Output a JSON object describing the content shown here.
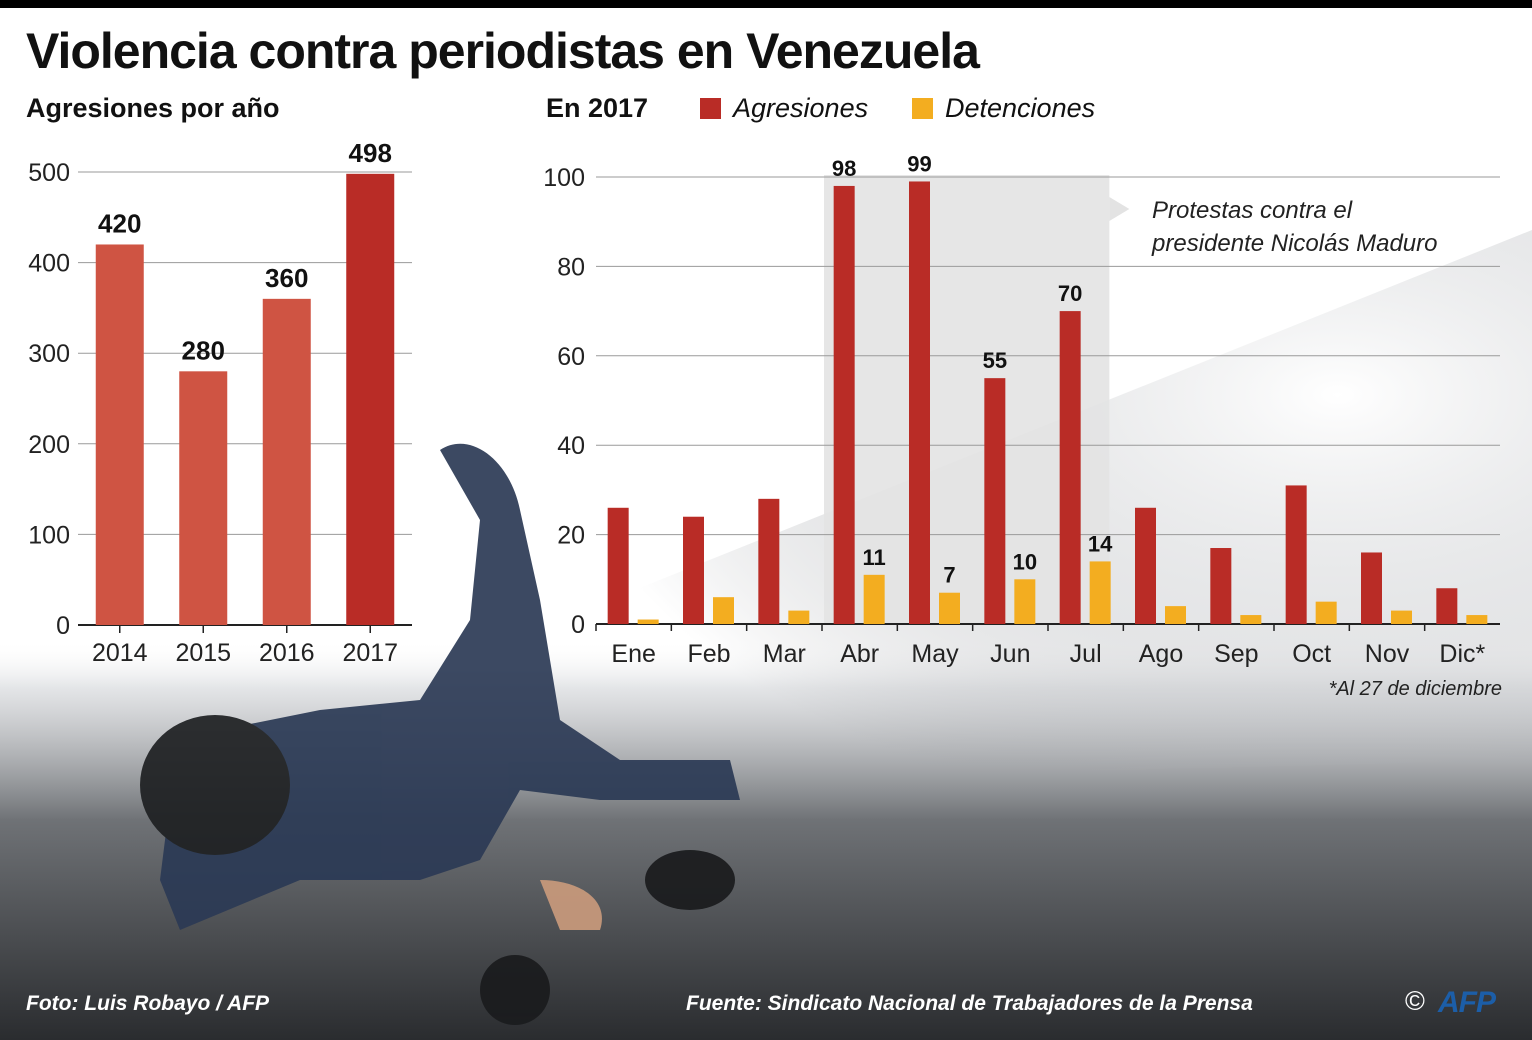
{
  "title": "Violencia contra periodistas en Venezuela",
  "colors": {
    "agresiones": "#b92c26",
    "annual": "#cf5443",
    "annual_latest": "#b92c26",
    "detenciones": "#f3ad20",
    "highlight": "#e3e3e3"
  },
  "legend": {
    "agresiones": "Agresiones",
    "detenciones": "Detenciones"
  },
  "annotation": {
    "line1": "Protestas contra el",
    "line2": "presidente Nicolás Maduro"
  },
  "footnote": "*Al 27 de diciembre",
  "credits": {
    "photo": "Foto: Luis Robayo / AFP",
    "source": "Fuente: Sindicato Nacional de Trabajadores de la Prensa",
    "copyright": "©",
    "logo": "AFP"
  },
  "chart_data": [
    {
      "type": "bar",
      "title": "Agresiones por año",
      "categories": [
        "2014",
        "2015",
        "2016",
        "2017"
      ],
      "values": [
        420,
        280,
        360,
        498
      ],
      "data_labels": [
        "420",
        "280",
        "360",
        "498"
      ],
      "ylim": [
        0,
        500
      ],
      "yticks": [
        0,
        100,
        200,
        300,
        400,
        500
      ],
      "grid": true
    },
    {
      "type": "bar",
      "title": "En 2017",
      "categories": [
        "Ene",
        "Feb",
        "Mar",
        "Abr",
        "May",
        "Jun",
        "Jul",
        "Ago",
        "Sep",
        "Oct",
        "Nov",
        "Dic*"
      ],
      "series": [
        {
          "name": "Agresiones",
          "values": [
            26,
            24,
            28,
            98,
            99,
            55,
            70,
            26,
            17,
            31,
            16,
            8
          ],
          "data_labels": [
            "",
            "",
            "",
            "98",
            "99",
            "55",
            "70",
            "",
            "",
            "",
            "",
            ""
          ]
        },
        {
          "name": "Detenciones",
          "values": [
            1,
            6,
            3,
            11,
            7,
            10,
            14,
            4,
            2,
            5,
            3,
            2
          ],
          "data_labels": [
            "",
            "",
            "",
            "11",
            "7",
            "10",
            "14",
            "",
            "",
            "",
            "",
            ""
          ]
        }
      ],
      "ylim": [
        0,
        100
      ],
      "yticks": [
        0,
        20,
        40,
        60,
        80,
        100
      ],
      "highlight_range": [
        "Abr",
        "Jul"
      ],
      "grid": true,
      "legend_position": "top"
    }
  ]
}
